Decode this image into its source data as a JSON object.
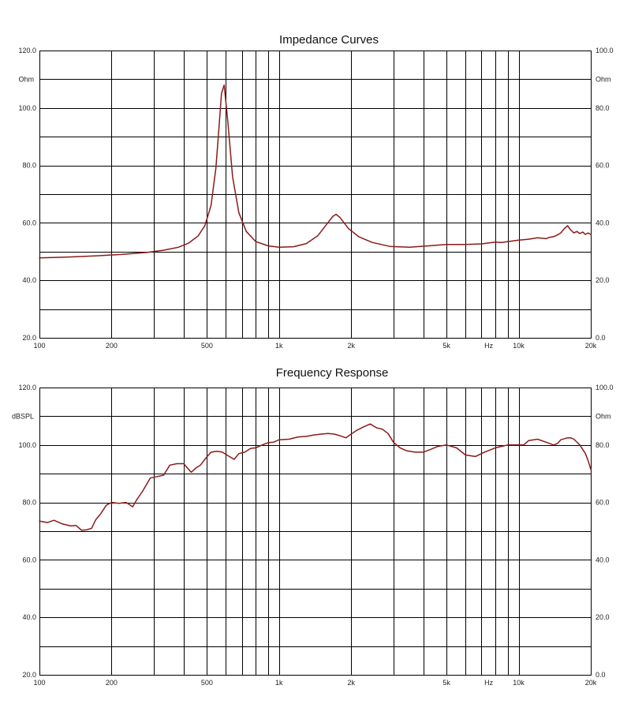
{
  "colors": {
    "curve": "#8b1a1a",
    "grid": "#000000",
    "background": "#ffffff"
  },
  "chart_data": [
    {
      "type": "line",
      "title": "Impedance Curves",
      "xscale": "log",
      "xlim": [
        100,
        20000
      ],
      "ylim": [
        20,
        120
      ],
      "ylim_right": [
        0,
        100
      ],
      "left_unit": "Ohm",
      "right_unit": "Ohm",
      "grid": true,
      "x_ticks": [
        {
          "value": 100,
          "label": "100"
        },
        {
          "value": 200,
          "label": "200"
        },
        {
          "value": 500,
          "label": "500"
        },
        {
          "value": 1000,
          "label": "1k"
        },
        {
          "value": 2000,
          "label": "2k"
        },
        {
          "value": 5000,
          "label": "5k"
        },
        {
          "value": 7500,
          "label": "Hz"
        },
        {
          "value": 10000,
          "label": "10k"
        },
        {
          "value": 20000,
          "label": "20k"
        }
      ],
      "x_gridlines": [
        100,
        200,
        300,
        400,
        500,
        600,
        700,
        800,
        900,
        1000,
        2000,
        3000,
        4000,
        5000,
        6000,
        7000,
        8000,
        9000,
        10000,
        20000
      ],
      "y_ticks_left": [
        "20.0",
        "40.0",
        "60.0",
        "80.0",
        "100.0",
        "120.0"
      ],
      "y_ticks_right": [
        "0.0",
        "20.0",
        "40.0",
        "60.0",
        "80.0",
        "100.0"
      ],
      "y_gridlines": [
        20,
        30,
        40,
        50,
        60,
        70,
        80,
        90,
        100,
        110,
        120
      ],
      "series": [
        {
          "x": [
            100,
            130,
            170,
            220,
            280,
            330,
            380,
            420,
            460,
            490,
            520,
            545,
            560,
            575,
            590,
            610,
            640,
            680,
            730,
            800,
            900,
            1000,
            1150,
            1300,
            1450,
            1580,
            1680,
            1730,
            1800,
            1950,
            2150,
            2450,
            2900,
            3500,
            4200,
            5000,
            6000,
            7000,
            8000,
            8500,
            9000,
            10000,
            11000,
            12000,
            13000,
            13500,
            14000,
            14500,
            15000,
            15500,
            16000,
            16500,
            17000,
            17500,
            18000,
            18500,
            19000,
            19500,
            20000
          ],
          "y": [
            47.8,
            48.1,
            48.5,
            49,
            49.7,
            50.5,
            51.5,
            53,
            55.5,
            59,
            66,
            79,
            92,
            105,
            108,
            96,
            76,
            63.5,
            57,
            53.5,
            52,
            51.5,
            51.7,
            52.8,
            55.5,
            59.5,
            62.3,
            63,
            61.8,
            58,
            55.2,
            53.2,
            51.8,
            51.5,
            52,
            52.5,
            52.5,
            52.7,
            53.3,
            53.2,
            53.5,
            54,
            54.3,
            54.8,
            54.5,
            55,
            55.2,
            55.8,
            56.5,
            58,
            59,
            57.5,
            56.5,
            57,
            56.3,
            56.8,
            56,
            56.5,
            56
          ]
        }
      ]
    },
    {
      "type": "line",
      "title": "Frequency Response",
      "xscale": "log",
      "xlim": [
        100,
        20000
      ],
      "ylim": [
        20,
        120
      ],
      "ylim_right": [
        0,
        100
      ],
      "left_unit": "dBSPL",
      "right_unit": "Ohm",
      "grid": true,
      "x_ticks": [
        {
          "value": 100,
          "label": "100"
        },
        {
          "value": 200,
          "label": "200"
        },
        {
          "value": 500,
          "label": "500"
        },
        {
          "value": 1000,
          "label": "1k"
        },
        {
          "value": 2000,
          "label": "2k"
        },
        {
          "value": 5000,
          "label": "5k"
        },
        {
          "value": 7500,
          "label": "Hz"
        },
        {
          "value": 10000,
          "label": "10k"
        },
        {
          "value": 20000,
          "label": "20k"
        }
      ],
      "x_gridlines": [
        100,
        200,
        300,
        400,
        500,
        600,
        700,
        800,
        900,
        1000,
        2000,
        3000,
        4000,
        5000,
        6000,
        7000,
        8000,
        9000,
        10000,
        20000
      ],
      "y_ticks_left": [
        "20.0",
        "40.0",
        "60.0",
        "80.0",
        "100.0",
        "120.0"
      ],
      "y_ticks_right": [
        "0.0",
        "20.0",
        "40.0",
        "60.0",
        "80.0",
        "100.0"
      ],
      "y_gridlines": [
        20,
        30,
        40,
        50,
        60,
        70,
        80,
        90,
        100,
        110,
        120
      ],
      "series": [
        {
          "x": [
            100,
            108,
            115,
            125,
            135,
            142,
            150,
            158,
            165,
            172,
            180,
            190,
            200,
            215,
            230,
            245,
            255,
            270,
            290,
            310,
            330,
            350,
            375,
            400,
            430,
            450,
            470,
            490,
            520,
            550,
            580,
            620,
            650,
            680,
            720,
            760,
            800,
            850,
            900,
            950,
            1000,
            1100,
            1200,
            1300,
            1400,
            1500,
            1600,
            1700,
            1800,
            1900,
            2000,
            2100,
            2250,
            2400,
            2550,
            2700,
            2850,
            3000,
            3200,
            3400,
            3700,
            4000,
            4300,
            4600,
            5000,
            5500,
            6000,
            6600,
            7200,
            8000,
            9000,
            10000,
            10500,
            11000,
            12000,
            13000,
            14000,
            14500,
            15000,
            16000,
            16500,
            17000,
            18000,
            19000,
            19500,
            20000
          ],
          "y": [
            73.5,
            73,
            73.8,
            72.5,
            71.8,
            72,
            70.3,
            70.5,
            71,
            74,
            76,
            79,
            80,
            79.7,
            80,
            78.5,
            81,
            84,
            88.5,
            89,
            89.5,
            93,
            93.5,
            93.5,
            90.5,
            92,
            93,
            95,
            97.5,
            97.8,
            97.5,
            96,
            95,
            97,
            97.5,
            98.8,
            99,
            100,
            100.8,
            101,
            101.8,
            102,
            102.8,
            103,
            103.5,
            103.8,
            104,
            103.8,
            103.2,
            102.5,
            103.8,
            105,
            106.3,
            107.3,
            106,
            105.5,
            104,
            101,
            99,
            98,
            97.5,
            97.5,
            98.5,
            99.5,
            100,
            99,
            96.5,
            96,
            97.5,
            99,
            100,
            100,
            100,
            101.5,
            102,
            101,
            100,
            100.5,
            101.8,
            102.5,
            102.5,
            102,
            100,
            97,
            94.5,
            91.5
          ]
        }
      ]
    }
  ]
}
